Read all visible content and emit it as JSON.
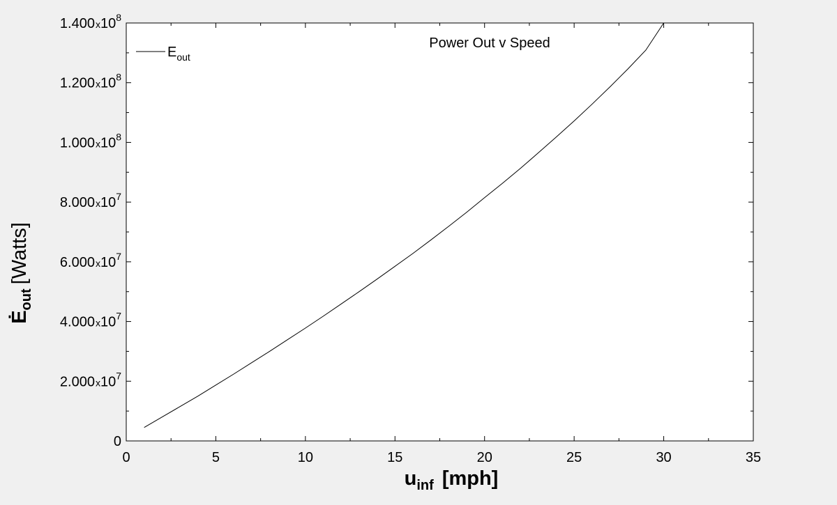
{
  "chart_data": {
    "type": "line",
    "title": "Power Out v Speed",
    "xlabel": {
      "main": "u",
      "sub": "inf",
      "unit": "[mph]"
    },
    "ylabel": {
      "main": "Ė",
      "sub": "out",
      "unit": "[Watts]"
    },
    "xlim": [
      0,
      35
    ],
    "ylim": [
      0,
      140000000
    ],
    "x_ticks": [
      0,
      5,
      10,
      15,
      20,
      25,
      30,
      35
    ],
    "x_tick_labels": [
      "0",
      "5",
      "10",
      "15",
      "20",
      "25",
      "30",
      "35"
    ],
    "y_ticks": [
      {
        "value": 0,
        "mantissa": "0",
        "times": "",
        "exponent": ""
      },
      {
        "value": 20000000,
        "mantissa": "2.000",
        "times": "x",
        "exponent": "10",
        "power": "7"
      },
      {
        "value": 40000000,
        "mantissa": "4.000",
        "times": "x",
        "exponent": "10",
        "power": "7"
      },
      {
        "value": 60000000,
        "mantissa": "6.000",
        "times": "x",
        "exponent": "10",
        "power": "7"
      },
      {
        "value": 80000000,
        "mantissa": "8.000",
        "times": "x",
        "exponent": "10",
        "power": "7"
      },
      {
        "value": 100000000,
        "mantissa": "1.000",
        "times": "x",
        "exponent": "10",
        "power": "8"
      },
      {
        "value": 120000000,
        "mantissa": "1.200",
        "times": "x",
        "exponent": "10",
        "power": "8"
      },
      {
        "value": 140000000,
        "mantissa": "1.400",
        "times": "x",
        "exponent": "10",
        "power": "8"
      }
    ],
    "legend": {
      "position": "top-left",
      "entries": [
        {
          "main": "E",
          "sub": "out"
        }
      ]
    },
    "grid": false,
    "series": [
      {
        "name": "E_out",
        "color": "#000000",
        "x": [
          1,
          2,
          3,
          4,
          5,
          6,
          7,
          8,
          9,
          10,
          11,
          12,
          13,
          14,
          15,
          16,
          17,
          18,
          19,
          20,
          21,
          22,
          23,
          24,
          25,
          26,
          27,
          28,
          29,
          30
        ],
        "y": [
          4500000,
          8000000,
          11500000,
          15000000,
          18700000,
          22400000,
          26200000,
          30000000,
          33900000,
          37800000,
          41800000,
          45900000,
          50000000,
          54200000,
          58500000,
          62800000,
          67300000,
          71900000,
          76600000,
          81500000,
          86300000,
          91300000,
          96500000,
          101800000,
          107200000,
          112800000,
          118600000,
          124600000,
          130900000,
          140000000
        ]
      }
    ]
  }
}
